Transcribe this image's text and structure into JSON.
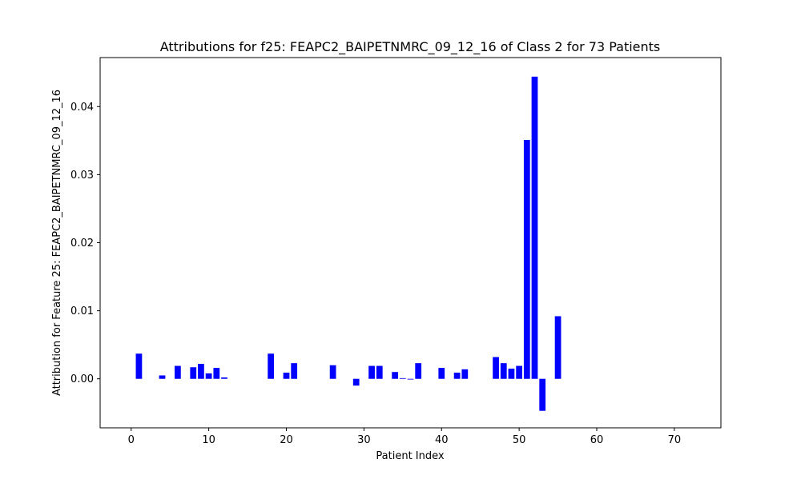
{
  "chart_data": {
    "type": "bar",
    "title": "Attributions for f25: FEAPC2_BAIPETNMRC_09_12_16 of Class 2 for 73 Patients",
    "xlabel": "Patient Index",
    "ylabel": "Attribution for Feature 25: FEAPC2_BAIPETNMRC_09_12_16",
    "xlim": [
      -4,
      76
    ],
    "ylim": [
      -0.0072,
      0.0472
    ],
    "x_ticks": [
      0,
      10,
      20,
      30,
      40,
      50,
      60,
      70
    ],
    "y_ticks": [
      0.0,
      0.01,
      0.02,
      0.03,
      0.04
    ],
    "x_tick_labels": [
      "0",
      "10",
      "20",
      "30",
      "40",
      "50",
      "60",
      "70"
    ],
    "y_tick_labels": [
      "0.00",
      "0.01",
      "0.02",
      "0.03",
      "0.04"
    ],
    "bar_color": "#0000ff",
    "grid": false,
    "legend": null,
    "bars": [
      {
        "x": 1,
        "value": 0.0037
      },
      {
        "x": 4,
        "value": 0.0005
      },
      {
        "x": 6,
        "value": 0.0019
      },
      {
        "x": 8,
        "value": 0.0017
      },
      {
        "x": 9,
        "value": 0.0022
      },
      {
        "x": 10,
        "value": 0.0008
      },
      {
        "x": 11,
        "value": 0.0016
      },
      {
        "x": 12,
        "value": 0.0002
      },
      {
        "x": 18,
        "value": 0.0037
      },
      {
        "x": 20,
        "value": 0.0009
      },
      {
        "x": 21,
        "value": 0.0023
      },
      {
        "x": 26,
        "value": 0.002
      },
      {
        "x": 29,
        "value": -0.001
      },
      {
        "x": 31,
        "value": 0.0019
      },
      {
        "x": 32,
        "value": 0.0019
      },
      {
        "x": 34,
        "value": 0.001
      },
      {
        "x": 35,
        "value": 0.0001
      },
      {
        "x": 36,
        "value": -0.0001
      },
      {
        "x": 37,
        "value": 0.0023
      },
      {
        "x": 40,
        "value": 0.0016
      },
      {
        "x": 42,
        "value": 0.0009
      },
      {
        "x": 43,
        "value": 0.0014
      },
      {
        "x": 47,
        "value": 0.0032
      },
      {
        "x": 48,
        "value": 0.0023
      },
      {
        "x": 49,
        "value": 0.0015
      },
      {
        "x": 50,
        "value": 0.0019
      },
      {
        "x": 51,
        "value": 0.0351
      },
      {
        "x": 52,
        "value": 0.0444
      },
      {
        "x": 53,
        "value": -0.0047
      },
      {
        "x": 55,
        "value": 0.0092
      }
    ]
  }
}
